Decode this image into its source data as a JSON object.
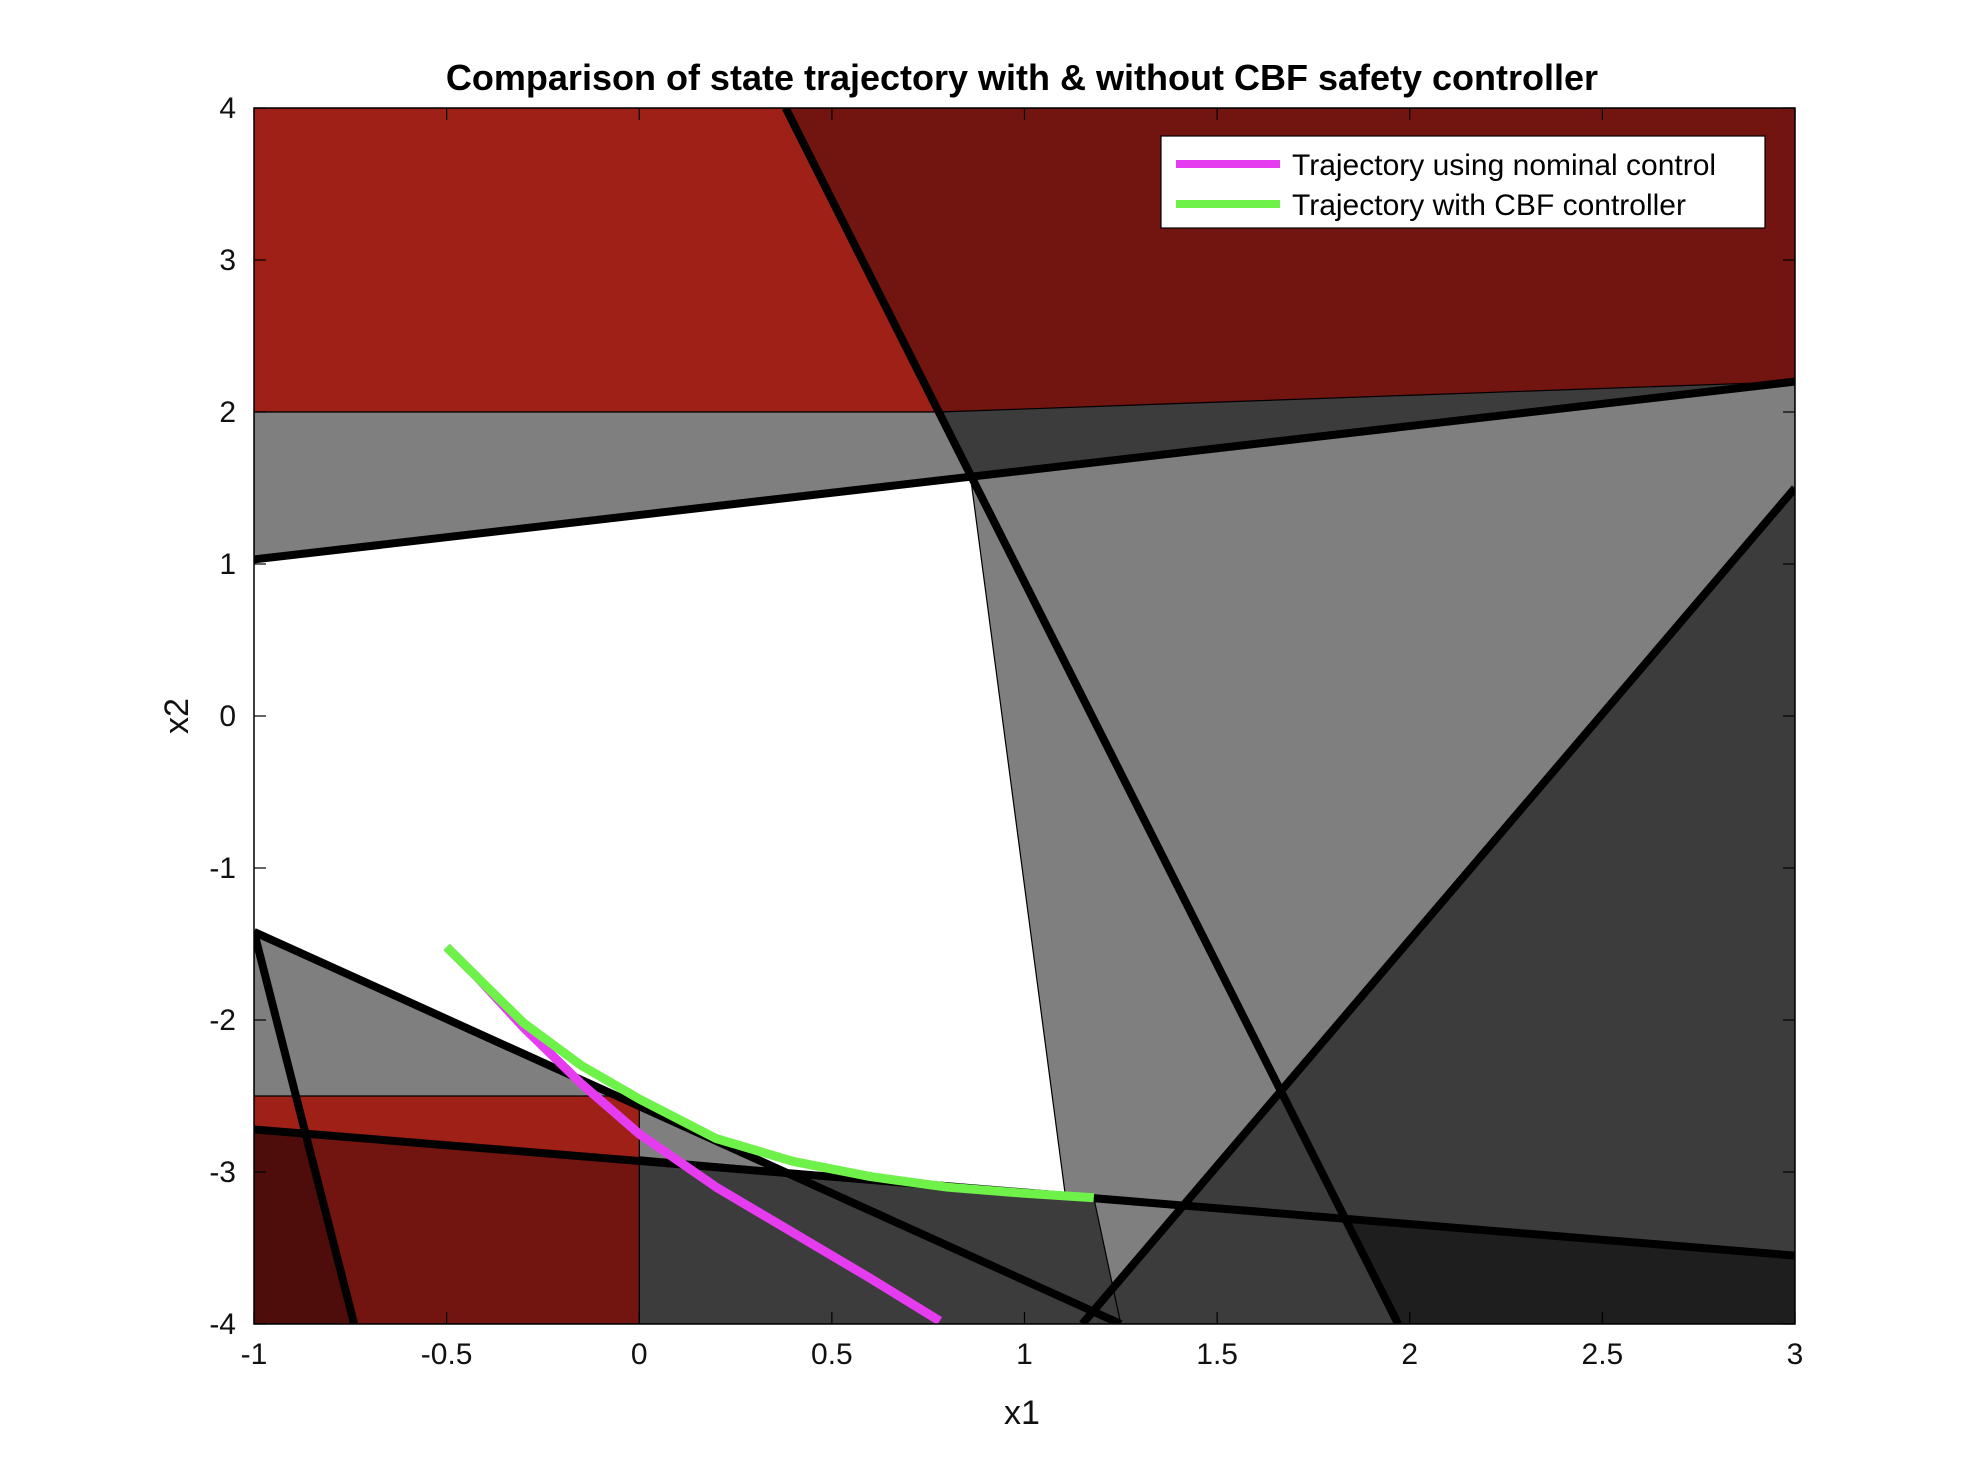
{
  "chart_data": {
    "type": "line",
    "title": "Comparison of state trajectory with & without CBF safety controller",
    "xlabel": "x1",
    "ylabel": "x2",
    "xlim": [
      -1,
      3
    ],
    "ylim": [
      -4,
      4
    ],
    "xticks": [
      "-1",
      "-0.5",
      "0",
      "0.5",
      "1",
      "1.5",
      "2",
      "2.5",
      "3"
    ],
    "yticks": [
      "-4",
      "-3",
      "-2",
      "-1",
      "0",
      "1",
      "2",
      "3",
      "4"
    ],
    "grid": false,
    "legend_position": "top-right",
    "colors": {
      "red_region": "#9e2017",
      "dark_red_region": "#721410",
      "darker_red_region": "#4e0d0a",
      "gray_region": "#7f7f7f",
      "dark_gray_region": "#3c3c3c",
      "darker_gray_region": "#1e1e1e",
      "constraint_line": "#000000"
    },
    "regions": [
      {
        "name": "unsafe-top-red",
        "color": "#9e2017",
        "polygon": [
          [
            -1,
            2
          ],
          [
            3,
            2
          ],
          [
            3,
            4
          ],
          [
            -1,
            4
          ]
        ]
      },
      {
        "name": "unsafe-top-dark-red",
        "color": "#721410",
        "polygon": [
          [
            0.38,
            4
          ],
          [
            3,
            4
          ],
          [
            3,
            2.2
          ],
          [
            2.4,
            2
          ],
          [
            0.78,
            2
          ]
        ]
      },
      {
        "name": "gray-band",
        "color": "#7f7f7f",
        "polygon": [
          [
            -1,
            1.03
          ],
          [
            3,
            2.2
          ],
          [
            3,
            2
          ],
          [
            -1,
            2
          ]
        ]
      },
      {
        "name": "gray-right",
        "color": "#7f7f7f",
        "polygon": [
          [
            0.86,
            1.57
          ],
          [
            3,
            2.2
          ],
          [
            3,
            -3.55
          ],
          [
            1.97,
            -4
          ],
          [
            1.15,
            -4
          ]
        ]
      },
      {
        "name": "dark-gray-corner",
        "color": "#3c3c3c",
        "polygon": [
          [
            1.15,
            -4
          ],
          [
            3,
            1.5
          ],
          [
            3,
            -4
          ]
        ]
      },
      {
        "name": "dark-gray-top",
        "color": "#3c3c3c",
        "polygon": [
          [
            0.78,
            2
          ],
          [
            3,
            2.2
          ],
          [
            0.86,
            1.57
          ]
        ]
      },
      {
        "name": "darker-gray-corner",
        "color": "#1e1e1e",
        "polygon": [
          [
            1.84,
            -3.3
          ],
          [
            3,
            -3.55
          ],
          [
            3,
            -4
          ],
          [
            1.97,
            -4
          ]
        ]
      },
      {
        "name": "gray-lower-left",
        "color": "#7f7f7f",
        "polygon": [
          [
            -1,
            -1.42
          ],
          [
            1.25,
            -4
          ],
          [
            -1,
            -4
          ]
        ]
      },
      {
        "name": "dark-gray-lower",
        "color": "#3c3c3c",
        "polygon": [
          [
            0,
            -2.9
          ],
          [
            1.18,
            -3.17
          ],
          [
            1.25,
            -4
          ],
          [
            0,
            -4
          ]
        ]
      },
      {
        "name": "red-lower-left",
        "color": "#9e2017",
        "polygon": [
          [
            -1,
            -2.5
          ],
          [
            0,
            -2.5
          ],
          [
            0,
            -4
          ],
          [
            -1,
            -4
          ]
        ]
      },
      {
        "name": "dark-red-lower-left",
        "color": "#721410",
        "polygon": [
          [
            -1,
            -2.72
          ],
          [
            0,
            -2.92
          ],
          [
            0,
            -4
          ],
          [
            -1,
            -4
          ]
        ]
      },
      {
        "name": "darker-red-corner",
        "color": "#4e0d0a",
        "polygon": [
          [
            -1,
            -2.72
          ],
          [
            -0.87,
            -2.75
          ],
          [
            -0.74,
            -4
          ],
          [
            -1,
            -4
          ]
        ]
      }
    ],
    "boundary_lines": [
      {
        "name": "line-a",
        "from": [
          -1,
          1.03
        ],
        "to": [
          3,
          2.2
        ]
      },
      {
        "name": "line-b",
        "from": [
          0.38,
          4
        ],
        "to": [
          1.97,
          -4
        ]
      },
      {
        "name": "line-c",
        "from": [
          1.15,
          -4
        ],
        "to": [
          3,
          1.5
        ]
      },
      {
        "name": "line-d",
        "from": [
          -1,
          -1.42
        ],
        "to": [
          1.25,
          -4
        ]
      },
      {
        "name": "line-e",
        "from": [
          -1,
          -1.42
        ],
        "to": [
          -0.74,
          -4
        ]
      },
      {
        "name": "line-f",
        "from": [
          -1,
          -2.72
        ],
        "to": [
          3,
          -3.55
        ]
      }
    ],
    "series": [
      {
        "name": "Trajectory using nominal control",
        "color": "#e63cf0",
        "x": [
          -0.5,
          -0.42,
          -0.3,
          -0.15,
          0.0,
          0.2,
          0.4,
          0.6,
          0.78
        ],
        "y": [
          -1.52,
          -1.72,
          -2.05,
          -2.42,
          -2.75,
          -3.1,
          -3.4,
          -3.7,
          -3.98
        ]
      },
      {
        "name": "Trajectory with CBF controller",
        "color": "#6ef24a",
        "x": [
          -0.5,
          -0.42,
          -0.3,
          -0.15,
          0.0,
          0.2,
          0.4,
          0.6,
          0.8,
          1.0,
          1.18
        ],
        "y": [
          -1.52,
          -1.72,
          -2.02,
          -2.3,
          -2.52,
          -2.78,
          -2.93,
          -3.03,
          -3.1,
          -3.14,
          -3.17
        ]
      }
    ]
  }
}
